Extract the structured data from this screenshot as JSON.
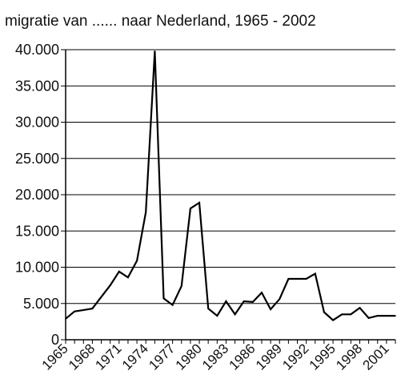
{
  "chart_data": {
    "type": "line",
    "title": "migratie van ...... naar Nederland, 1965 - 2002",
    "xlabel": "",
    "ylabel": "",
    "xlim": [
      1965,
      2002
    ],
    "ylim": [
      0,
      40000
    ],
    "grid": "horizontal",
    "y_ticks": [
      {
        "value": 0,
        "label": "0"
      },
      {
        "value": 5000,
        "label": "5.000"
      },
      {
        "value": 10000,
        "label": "10.000"
      },
      {
        "value": 15000,
        "label": "15.000"
      },
      {
        "value": 20000,
        "label": "20.000"
      },
      {
        "value": 25000,
        "label": "25.000"
      },
      {
        "value": 30000,
        "label": "30.000"
      },
      {
        "value": 35000,
        "label": "35.000"
      },
      {
        "value": 40000,
        "label": "40.000"
      }
    ],
    "x_ticks": [
      {
        "value": 1965,
        "label": "1965"
      },
      {
        "value": 1968,
        "label": "1968"
      },
      {
        "value": 1971,
        "label": "1971"
      },
      {
        "value": 1974,
        "label": "1974"
      },
      {
        "value": 1977,
        "label": "1977"
      },
      {
        "value": 1980,
        "label": "1980"
      },
      {
        "value": 1983,
        "label": "1983"
      },
      {
        "value": 1986,
        "label": "1986"
      },
      {
        "value": 1989,
        "label": "1989"
      },
      {
        "value": 1992,
        "label": "1992"
      },
      {
        "value": 1995,
        "label": "1995"
      },
      {
        "value": 1998,
        "label": "1998"
      },
      {
        "value": 2001,
        "label": "2001"
      }
    ],
    "series": [
      {
        "x": [
          1965,
          1966,
          1967,
          1968,
          1969,
          1970,
          1971,
          1972,
          1973,
          1974,
          1975,
          1976,
          1977,
          1978,
          1979,
          1980,
          1981,
          1982,
          1983,
          1984,
          1985,
          1986,
          1987,
          1988,
          1989,
          1990,
          1991,
          1992,
          1993,
          1994,
          1995,
          1996,
          1997,
          1998,
          1999,
          2000,
          2001,
          2002
        ],
        "y": [
          2900,
          3900,
          4100,
          4300,
          5900,
          7500,
          9400,
          8600,
          10900,
          17600,
          39800,
          5700,
          4800,
          7400,
          18100,
          18900,
          4300,
          3300,
          5300,
          3500,
          5300,
          5200,
          6500,
          4200,
          5600,
          8400,
          8400,
          8400,
          9100,
          3800,
          2700,
          3500,
          3500,
          4400,
          3000,
          3300,
          3300,
          3300
        ]
      }
    ],
    "colors": {
      "line": "#000000",
      "grid": "#000000"
    }
  }
}
